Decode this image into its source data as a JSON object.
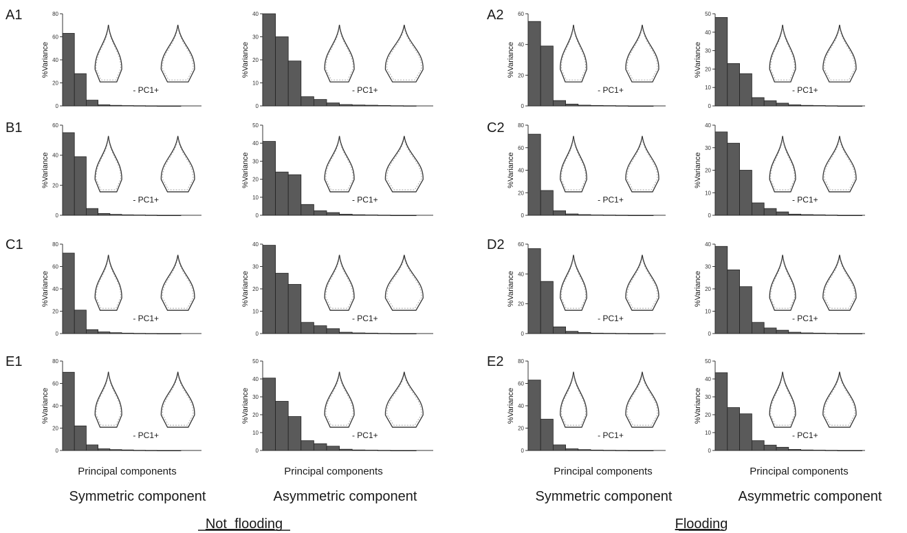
{
  "figure": {
    "pc_label": "- PC1+",
    "ylabel": "%Variance",
    "xlabel": "Principal components",
    "columns": [
      "Symmetric component",
      "Asymmetric component",
      "Symmetric component",
      "Asymmetric component"
    ],
    "groups": [
      "Not  flooding",
      "Flooding"
    ]
  },
  "chart_data": [
    {
      "panel": "A1",
      "type": "bar",
      "component": "Symmetric",
      "ylabel": "%Variance",
      "ylim": [
        0,
        80
      ],
      "yticks": [
        0,
        20,
        40,
        60,
        80
      ],
      "values": [
        63,
        28,
        5,
        1,
        0.5,
        0.3,
        0.2,
        0.1,
        0,
        0
      ]
    },
    {
      "panel": "A1",
      "type": "bar",
      "component": "Asymmetric",
      "ylabel": "%Variance",
      "ylim": [
        0,
        40
      ],
      "yticks": [
        0,
        10,
        20,
        30,
        40
      ],
      "values": [
        40,
        30,
        19.5,
        4,
        2.8,
        1.3,
        0.6,
        0.4,
        0.3,
        0.2,
        0.1,
        0.05
      ]
    },
    {
      "panel": "B1",
      "type": "bar",
      "component": "Symmetric",
      "ylabel": "%Variance",
      "ylim": [
        0,
        60
      ],
      "yticks": [
        0,
        20,
        40,
        60
      ],
      "values": [
        55,
        39,
        4.5,
        1.2,
        0.6,
        0.3,
        0.2,
        0.1,
        0,
        0
      ]
    },
    {
      "panel": "B1",
      "type": "bar",
      "component": "Asymmetric",
      "ylabel": "%Variance",
      "ylim": [
        0,
        50
      ],
      "yticks": [
        0,
        10,
        20,
        30,
        40,
        50
      ],
      "values": [
        41,
        24,
        22.5,
        6,
        2.5,
        1.5,
        0.6,
        0.3,
        0.2,
        0.1,
        0,
        0
      ]
    },
    {
      "panel": "C1",
      "type": "bar",
      "component": "Symmetric",
      "ylabel": "%Variance",
      "ylim": [
        0,
        80
      ],
      "yticks": [
        0,
        20,
        40,
        60,
        80
      ],
      "values": [
        72,
        21,
        3.5,
        1.5,
        0.8,
        0.4,
        0.2,
        0.1,
        0,
        0
      ]
    },
    {
      "panel": "C1",
      "type": "bar",
      "component": "Asymmetric",
      "ylabel": "%Variance",
      "ylim": [
        0,
        40
      ],
      "yticks": [
        0,
        10,
        20,
        30,
        40
      ],
      "values": [
        39.5,
        27,
        22,
        5,
        3.5,
        2.2,
        0.6,
        0.3,
        0.2,
        0.1,
        0,
        0
      ]
    },
    {
      "panel": "E1",
      "type": "bar",
      "component": "Symmetric",
      "ylabel": "%Variance",
      "ylim": [
        0,
        80
      ],
      "yticks": [
        0,
        20,
        40,
        60,
        80
      ],
      "values": [
        70,
        22,
        5,
        1.5,
        0.8,
        0.5,
        0.2,
        0.1,
        0,
        0
      ]
    },
    {
      "panel": "E1",
      "type": "bar",
      "component": "Asymmetric",
      "ylabel": "%Variance",
      "ylim": [
        0,
        50
      ],
      "yticks": [
        0,
        10,
        20,
        30,
        40,
        50
      ],
      "values": [
        40.5,
        27.5,
        19,
        5.5,
        3.8,
        2.4,
        0.7,
        0.3,
        0.2,
        0.1,
        0,
        0
      ]
    },
    {
      "panel": "A2",
      "type": "bar",
      "component": "Symmetric",
      "ylabel": "%Variance",
      "ylim": [
        0,
        60
      ],
      "yticks": [
        0,
        20,
        40,
        60
      ],
      "values": [
        55,
        39,
        3.5,
        1.2,
        0.5,
        0.3,
        0.2,
        0.1,
        0,
        0
      ]
    },
    {
      "panel": "A2",
      "type": "bar",
      "component": "Asymmetric",
      "ylabel": "%Variance",
      "ylim": [
        0,
        50
      ],
      "yticks": [
        0,
        10,
        20,
        30,
        40,
        50
      ],
      "values": [
        48,
        23,
        17.5,
        4.5,
        2.8,
        1.5,
        0.6,
        0.3,
        0.2,
        0.1,
        0,
        0
      ]
    },
    {
      "panel": "C2",
      "type": "bar",
      "component": "Symmetric",
      "ylabel": "%Variance",
      "ylim": [
        0,
        80
      ],
      "yticks": [
        0,
        20,
        40,
        60,
        80
      ],
      "values": [
        72,
        22,
        4,
        1.2,
        0.6,
        0.3,
        0.2,
        0.1,
        0,
        0
      ]
    },
    {
      "panel": "C2",
      "type": "bar",
      "component": "Asymmetric",
      "ylabel": "%Variance",
      "ylim": [
        0,
        40
      ],
      "yticks": [
        0,
        10,
        20,
        30,
        40
      ],
      "values": [
        37,
        32,
        20,
        5.5,
        3,
        1.5,
        0.5,
        0.3,
        0.2,
        0.1,
        0,
        0
      ]
    },
    {
      "panel": "D2",
      "type": "bar",
      "component": "Symmetric",
      "ylabel": "%Variance",
      "ylim": [
        0,
        60
      ],
      "yticks": [
        0,
        20,
        40,
        60
      ],
      "values": [
        57,
        35,
        4.5,
        1.5,
        0.7,
        0.3,
        0.2,
        0.1,
        0,
        0
      ]
    },
    {
      "panel": "D2",
      "type": "bar",
      "component": "Asymmetric",
      "ylabel": "%Variance",
      "ylim": [
        0,
        40
      ],
      "yticks": [
        0,
        10,
        20,
        30,
        40
      ],
      "values": [
        39,
        28.5,
        21,
        5,
        2.5,
        1.5,
        0.6,
        0.3,
        0.2,
        0.1,
        0,
        0
      ]
    },
    {
      "panel": "E2",
      "type": "bar",
      "component": "Symmetric",
      "ylabel": "%Variance",
      "ylim": [
        0,
        80
      ],
      "yticks": [
        0,
        20,
        40,
        60,
        80
      ],
      "values": [
        63,
        28,
        5,
        1.5,
        0.8,
        0.4,
        0.2,
        0.1,
        0,
        0
      ]
    },
    {
      "panel": "E2",
      "type": "bar",
      "component": "Asymmetric",
      "ylabel": "%Variance",
      "ylim": [
        0,
        50
      ],
      "yticks": [
        0,
        10,
        20,
        30,
        40,
        50
      ],
      "values": [
        43.5,
        24,
        20.5,
        5.5,
        3,
        1.8,
        0.6,
        0.3,
        0.2,
        0.1,
        0,
        0
      ]
    }
  ]
}
